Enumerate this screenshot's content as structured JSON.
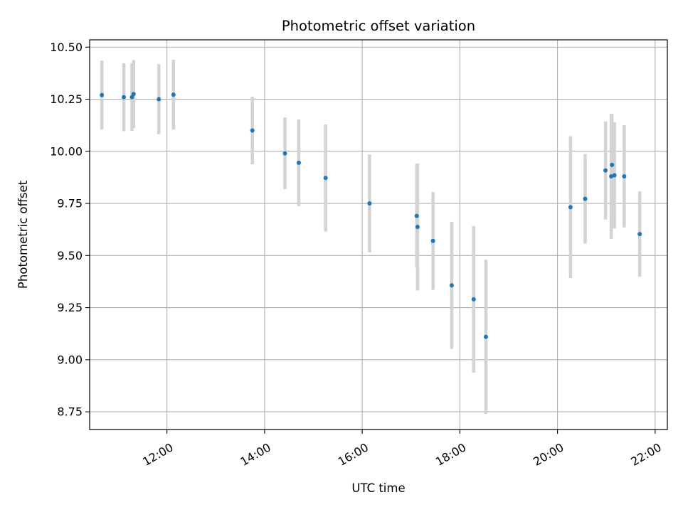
{
  "chart_data": {
    "type": "scatter",
    "title": "Photometric offset variation",
    "xlabel": "UTC time",
    "ylabel": "Photometric offset",
    "x_axis_type": "time",
    "x_range": [
      "10:25",
      "22:15"
    ],
    "ylim": [
      8.665,
      10.535
    ],
    "grid": true,
    "legend": "none",
    "x_ticks": [
      "12:00",
      "14:00",
      "16:00",
      "18:00",
      "20:00",
      "22:00"
    ],
    "y_ticks": [
      "8.75",
      "9.00",
      "9.25",
      "9.50",
      "9.75",
      "10.00",
      "10.25",
      "10.50"
    ],
    "marker_color": "#1f77b4",
    "errorbar_color": "#d3d3d3",
    "series": [
      {
        "points": [
          {
            "x": "10:40",
            "y": 10.27,
            "err": 0.165
          },
          {
            "x": "11:07",
            "y": 10.26,
            "err": 0.163
          },
          {
            "x": "11:17",
            "y": 10.26,
            "err": 0.162
          },
          {
            "x": "11:19",
            "y": 10.275,
            "err": 0.163
          },
          {
            "x": "11:50",
            "y": 10.25,
            "err": 0.168
          },
          {
            "x": "12:08",
            "y": 10.272,
            "err": 0.168
          },
          {
            "x": "13:45",
            "y": 10.1,
            "err": 0.162
          },
          {
            "x": "14:25",
            "y": 9.99,
            "err": 0.172
          },
          {
            "x": "14:42",
            "y": 9.945,
            "err": 0.208
          },
          {
            "x": "15:15",
            "y": 9.872,
            "err": 0.257
          },
          {
            "x": "16:09",
            "y": 9.75,
            "err": 0.235
          },
          {
            "x": "17:07",
            "y": 9.69,
            "err": 0.25
          },
          {
            "x": "17:08",
            "y": 9.637,
            "err": 0.305
          },
          {
            "x": "17:27",
            "y": 9.57,
            "err": 0.235
          },
          {
            "x": "17:50",
            "y": 9.357,
            "err": 0.305
          },
          {
            "x": "18:17",
            "y": 9.29,
            "err": 0.352
          },
          {
            "x": "18:32",
            "y": 9.11,
            "err": 0.37
          },
          {
            "x": "20:16",
            "y": 9.732,
            "err": 0.34
          },
          {
            "x": "20:34",
            "y": 9.772,
            "err": 0.215
          },
          {
            "x": "20:59",
            "y": 9.908,
            "err": 0.235
          },
          {
            "x": "21:06",
            "y": 9.88,
            "err": 0.3
          },
          {
            "x": "21:07",
            "y": 9.935,
            "err": 0.245
          },
          {
            "x": "21:10",
            "y": 9.885,
            "err": 0.255
          },
          {
            "x": "21:22",
            "y": 9.88,
            "err": 0.245
          },
          {
            "x": "21:41",
            "y": 9.603,
            "err": 0.205
          }
        ]
      }
    ]
  }
}
